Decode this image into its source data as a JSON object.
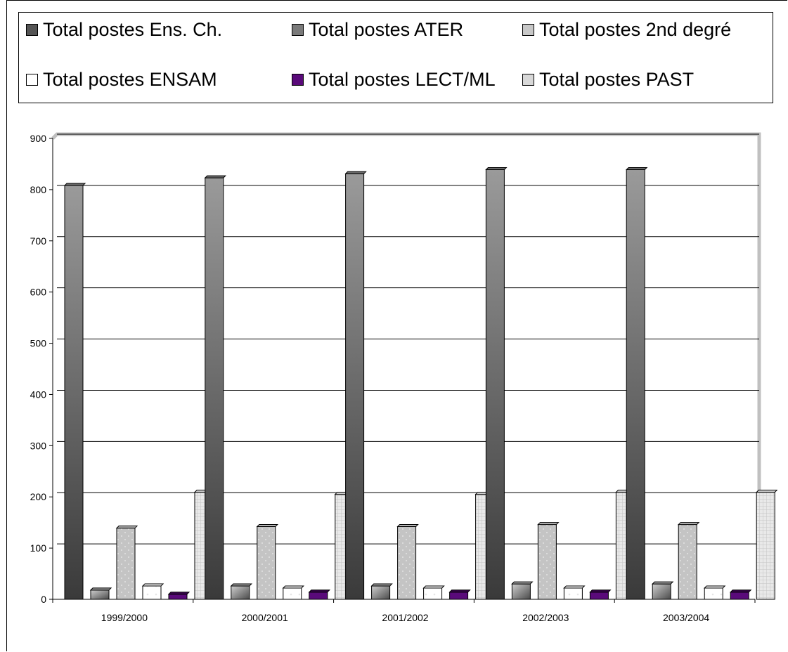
{
  "legend": {
    "items": [
      {
        "label": "Total postes Ens. Ch.",
        "swatch": "#555555"
      },
      {
        "label": "Total postes ATER",
        "swatch": "#7a7a7a"
      },
      {
        "label": "Total postes 2nd degré",
        "swatch": "#c8c8c8"
      },
      {
        "label": "Total postes ENSAM",
        "swatch": "#ffffff"
      },
      {
        "label": "Total postes LECT/ML",
        "swatch": "#5a0a7a"
      },
      {
        "label": "Total postes PAST",
        "swatch": "#d8d8d8"
      }
    ]
  },
  "chart_data": {
    "type": "bar",
    "categories": [
      "1999/2000",
      "2000/2001",
      "2001/2002",
      "2002/2003",
      "2003/2004"
    ],
    "series": [
      {
        "name": "Total postes Ens. Ch.",
        "values": [
          808,
          823,
          831,
          839,
          839
        ]
      },
      {
        "name": "Total postes ATER",
        "values": [
          18,
          26,
          26,
          30,
          30
        ]
      },
      {
        "name": "Total postes 2nd degré",
        "values": [
          139,
          142,
          142,
          146,
          146
        ]
      },
      {
        "name": "Total postes ENSAM",
        "values": [
          26,
          22,
          22,
          22,
          22
        ]
      },
      {
        "name": "Total postes LECT/ML",
        "values": [
          10,
          14,
          14,
          14,
          14
        ]
      },
      {
        "name": "Total postes PAST",
        "values": [
          209,
          205,
          205,
          209,
          209
        ]
      }
    ],
    "ylim": [
      0,
      900
    ],
    "yticks": [
      "0",
      "100",
      "200",
      "300",
      "400",
      "500",
      "600",
      "700",
      "800",
      "900"
    ],
    "grid": true,
    "legend_position": "top",
    "colors": {
      "ens_ch_dark": "#3a3a3a",
      "ens_ch_light": "#9a9a9a",
      "ater_dark": "#4a4a4a",
      "ater_light": "#cfcfcf",
      "second_degree": "#c4c4c4",
      "ensam": "#ffffff",
      "lect_ml": "#5a0a7a",
      "past": "#d9d9d9",
      "axis_frame": "#c0c0c0",
      "gridline": "#000000"
    }
  }
}
